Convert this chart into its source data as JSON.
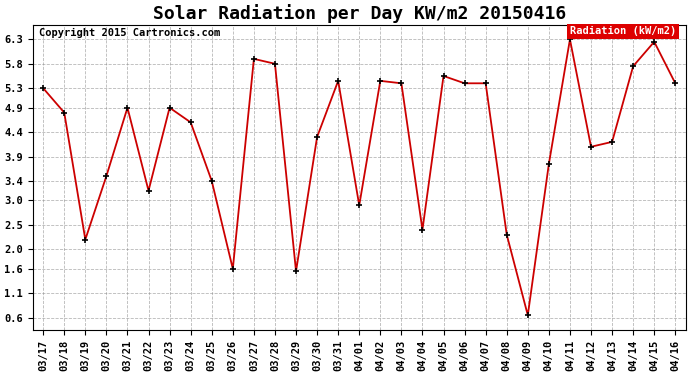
{
  "title": "Solar Radiation per Day KW/m2 20150416",
  "copyright": "Copyright 2015 Cartronics.com",
  "legend_label": "Radiation (kW/m2)",
  "dates": [
    "03/17",
    "03/18",
    "03/19",
    "03/20",
    "03/21",
    "03/22",
    "03/23",
    "03/24",
    "03/25",
    "03/26",
    "03/27",
    "03/28",
    "03/29",
    "03/30",
    "03/31",
    "04/01",
    "04/02",
    "04/03",
    "04/04",
    "04/05",
    "04/06",
    "04/07",
    "04/08",
    "04/09",
    "04/10",
    "04/11",
    "04/12",
    "04/13",
    "04/14",
    "04/15",
    "04/16"
  ],
  "values": [
    5.3,
    4.8,
    2.2,
    3.5,
    4.9,
    3.2,
    4.9,
    4.6,
    3.4,
    1.6,
    5.9,
    5.8,
    1.55,
    4.3,
    5.45,
    2.9,
    5.45,
    5.4,
    2.4,
    5.55,
    5.4,
    5.4,
    2.3,
    0.65,
    3.75,
    6.3,
    4.1,
    4.2,
    5.75,
    6.25,
    5.4
  ],
  "line_color": "#cc0000",
  "marker_color": "#000000",
  "background_color": "#ffffff",
  "plot_bg_color": "#ffffff",
  "grid_color": "#888888",
  "ylim": [
    0.35,
    6.6
  ],
  "yticks": [
    0.6,
    1.1,
    1.6,
    2.0,
    2.5,
    3.0,
    3.4,
    3.9,
    4.4,
    4.9,
    5.3,
    5.8,
    6.3
  ],
  "legend_bg": "#dd0000",
  "legend_text_color": "#ffffff",
  "title_fontsize": 13,
  "tick_fontsize": 7.5,
  "copyright_fontsize": 7.5
}
